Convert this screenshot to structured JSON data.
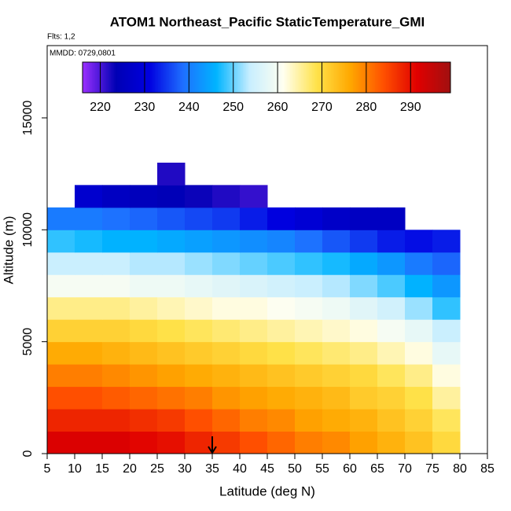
{
  "chart_data": {
    "type": "heatmap",
    "title": "ATOM1 Northeast_Pacific StaticTemperature_GMI",
    "flights_label": "Flts: 1,2",
    "dates_label": "MMDD: 0729,0801",
    "x_label": "Latitude (deg N)",
    "y_label": "Altitude (m)",
    "xlim": [
      5,
      85
    ],
    "xticks": [
      5,
      10,
      15,
      20,
      25,
      30,
      35,
      40,
      45,
      50,
      55,
      60,
      65,
      70,
      75,
      80,
      85
    ],
    "ylim": [
      0,
      18230
    ],
    "yticks": [
      0,
      5000,
      10000,
      15000
    ],
    "x_edges": [
      5,
      10,
      15,
      20,
      25,
      30,
      35,
      40,
      45,
      50,
      55,
      60,
      65,
      70,
      75,
      80
    ],
    "y_edges": [
      0,
      1000,
      2000,
      3000,
      4000,
      5000,
      6000,
      7000,
      8000,
      9000,
      10000,
      11000,
      12000,
      13000
    ],
    "z": [
      [
        292,
        292,
        292,
        291,
        290,
        288,
        286,
        284,
        282,
        280,
        279,
        277,
        275,
        273,
        270
      ],
      [
        288,
        288,
        288,
        287,
        286,
        284,
        282,
        280,
        279,
        277,
        276,
        275,
        273,
        271,
        268
      ],
      [
        284,
        284,
        283,
        282,
        281,
        280,
        278,
        277,
        276,
        275,
        274,
        272,
        271,
        269,
        265
      ],
      [
        280,
        280,
        279,
        278,
        277,
        276,
        275,
        274,
        273,
        272,
        271,
        270,
        268,
        266,
        262
      ],
      [
        276,
        276,
        275,
        274,
        273,
        272,
        271,
        270,
        269,
        268,
        267,
        266,
        264,
        262,
        258
      ],
      [
        271,
        271,
        271,
        270,
        269,
        268,
        267,
        266,
        265,
        264,
        263,
        262,
        260,
        258,
        254
      ],
      [
        266,
        266,
        266,
        265,
        264,
        263,
        262,
        262,
        261,
        260,
        259,
        257,
        255,
        252,
        248
      ],
      [
        260,
        260,
        260,
        259,
        259,
        258,
        257,
        256,
        255,
        254,
        253,
        251,
        249,
        246,
        243
      ],
      [
        254,
        254,
        254,
        253,
        253,
        252,
        251,
        250,
        249,
        248,
        247,
        245,
        243,
        240,
        238
      ],
      [
        248,
        247,
        246,
        246,
        245,
        244,
        243,
        242,
        241,
        239,
        237,
        235,
        233,
        232,
        233
      ],
      [
        240,
        240,
        239,
        238,
        237,
        236,
        235,
        233,
        231,
        229,
        227,
        226,
        226,
        null,
        null
      ],
      [
        null,
        228,
        226,
        225,
        224,
        223,
        222,
        221,
        null,
        null,
        null,
        null,
        null,
        null,
        null
      ],
      [
        null,
        null,
        null,
        null,
        222,
        null,
        null,
        null,
        null,
        null,
        null,
        null,
        null,
        null,
        null
      ]
    ],
    "colorbar_lim": [
      216,
      299
    ],
    "colorbar_ticks": [
      220,
      230,
      240,
      250,
      260,
      270,
      280,
      290
    ],
    "colormap": [
      "#9b30ff",
      "#0000b4",
      "#0000e0",
      "#1e6fff",
      "#00b4ff",
      "#c8eeff",
      "#fffff0",
      "#ffe24a",
      "#ffa800",
      "#ff5000",
      "#e00000",
      "#a01010"
    ],
    "arrow_x": 35
  }
}
